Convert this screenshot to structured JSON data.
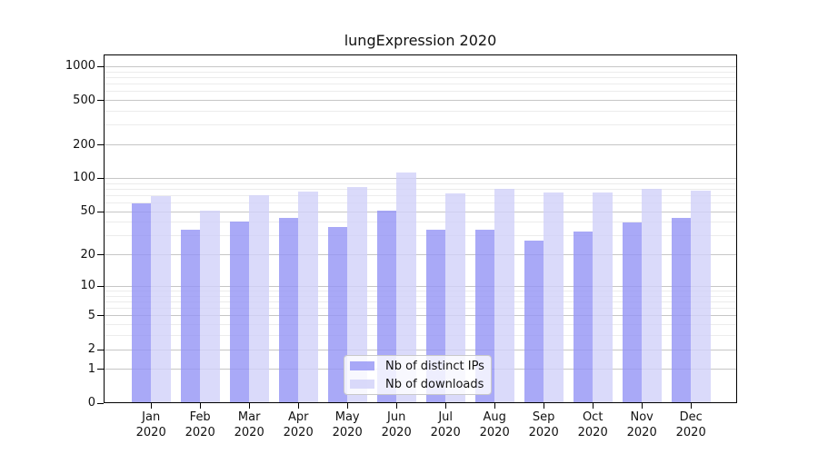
{
  "chart": {
    "title": "lungExpression 2020"
  },
  "chart_data": {
    "type": "bar",
    "title": "lungExpression 2020",
    "xlabel": "",
    "ylabel": "",
    "categories": [
      "Jan 2020",
      "Feb 2020",
      "Mar 2020",
      "Apr 2020",
      "May 2020",
      "Jun 2020",
      "Jul 2020",
      "Aug 2020",
      "Sep 2020",
      "Oct 2020",
      "Nov 2020",
      "Dec 2020"
    ],
    "series": [
      {
        "name": "Nb of distinct IPs",
        "color": "rgba(148,148,245,0.8)",
        "values": [
          60,
          34,
          41,
          44,
          36,
          51,
          34,
          34,
          27,
          33,
          40,
          44
        ]
      },
      {
        "name": "Nb of downloads",
        "color": "rgba(209,209,249,0.8)",
        "values": [
          69,
          51,
          70,
          76,
          83,
          113,
          73,
          80,
          75,
          74,
          80,
          78
        ]
      }
    ],
    "yscale": "log1p",
    "ylim": [
      0,
      1285
    ],
    "y_ticks": [
      0,
      1,
      2,
      5,
      10,
      20,
      50,
      100,
      200,
      500,
      1000
    ],
    "y_minor_ticks": [
      3,
      4,
      6,
      7,
      8,
      9,
      30,
      40,
      60,
      70,
      80,
      90,
      300,
      400,
      600,
      700,
      800,
      900
    ],
    "grid": true,
    "legend_position": "lower center",
    "colors": {
      "bar_dark": "rgba(148,148,245,0.8)",
      "bar_light": "rgba(209,209,249,0.8)",
      "major_grid": "#c6c6c6",
      "minor_grid": "#ececec",
      "spine": "#000000",
      "legend_border": "#c9c9c9"
    }
  }
}
